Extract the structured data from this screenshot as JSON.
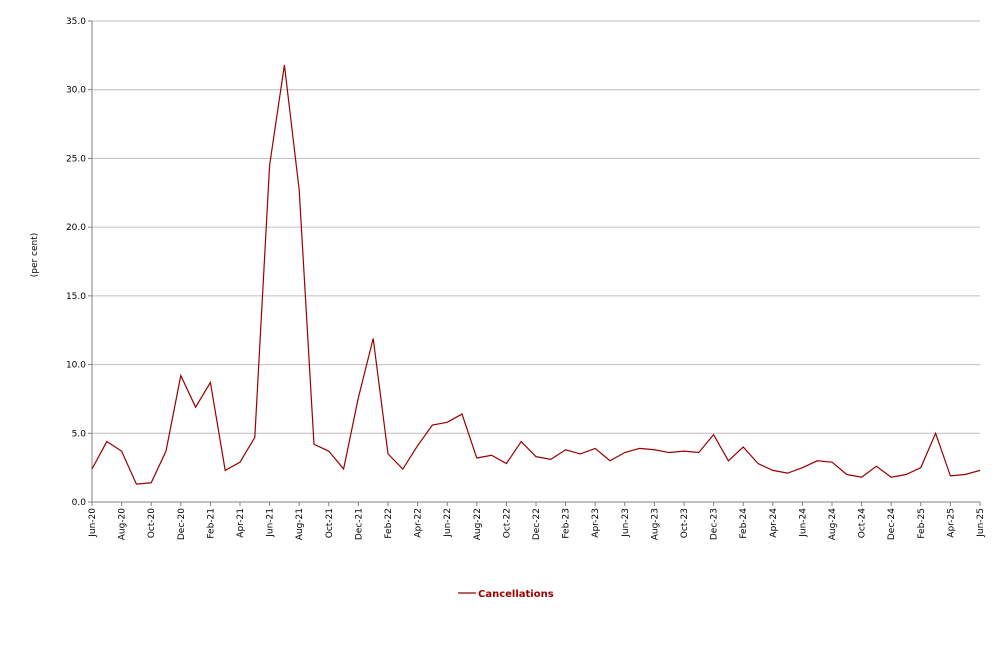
{
  "chart_data": {
    "type": "line",
    "title": "",
    "xlabel": "",
    "ylabel": "(per cent)",
    "ylim": [
      0,
      35
    ],
    "yticks": [
      "0.0",
      "5.0",
      "10.0",
      "15.0",
      "20.0",
      "25.0",
      "30.0",
      "35.0"
    ],
    "grid": true,
    "legend_position": "bottom-center",
    "colors": {
      "series": "#990000",
      "grid": "#c0c0c0",
      "axis": "#808080"
    },
    "x": [
      "Jun-20",
      "Jul-20",
      "Aug-20",
      "Sep-20",
      "Oct-20",
      "Nov-20",
      "Dec-20",
      "Jan-21",
      "Feb-21",
      "Mar-21",
      "Apr-21",
      "May-21",
      "Jun-21",
      "Jul-21",
      "Aug-21",
      "Sep-21",
      "Oct-21",
      "Nov-21",
      "Dec-21",
      "Jan-22",
      "Feb-22",
      "Mar-22",
      "Apr-22",
      "May-22",
      "Jun-22",
      "Jul-22",
      "Aug-22",
      "Sep-22",
      "Oct-22",
      "Nov-22",
      "Dec-22",
      "Jan-23",
      "Feb-23",
      "Mar-23",
      "Apr-23",
      "May-23",
      "Jun-23",
      "Jul-23",
      "Aug-23",
      "Sep-23",
      "Oct-23",
      "Nov-23",
      "Dec-23",
      "Jan-24",
      "Feb-24",
      "Mar-24",
      "Apr-24",
      "May-24",
      "Jun-24",
      "Jul-24",
      "Aug-24",
      "Sep-24",
      "Oct-24",
      "Nov-24",
      "Dec-24",
      "Jan-25",
      "Feb-25",
      "Mar-25",
      "Apr-25",
      "May-25",
      "Jun-25"
    ],
    "xtick_labels": [
      "Jun-20",
      "Aug-20",
      "Oct-20",
      "Dec-20",
      "Feb-21",
      "Apr-21",
      "Jun-21",
      "Aug-21",
      "Oct-21",
      "Dec-21",
      "Feb-22",
      "Apr-22",
      "Jun-22",
      "Aug-22",
      "Oct-22",
      "Dec-22",
      "Feb-23",
      "Apr-23",
      "Jun-23",
      "Aug-23",
      "Oct-23",
      "Dec-23",
      "Feb-24",
      "Apr-24",
      "Jun-24",
      "Aug-24",
      "Oct-24",
      "Dec-24",
      "Feb-25",
      "Apr-25",
      "Jun-25"
    ],
    "series": [
      {
        "name": "Cancellations",
        "values": [
          2.4,
          4.4,
          3.7,
          1.3,
          1.4,
          3.7,
          9.2,
          6.9,
          8.7,
          2.3,
          2.9,
          4.7,
          24.5,
          31.8,
          22.7,
          4.2,
          3.7,
          2.4,
          7.6,
          11.9,
          3.5,
          2.4,
          4.1,
          5.6,
          5.8,
          6.4,
          3.2,
          3.4,
          2.8,
          4.4,
          3.3,
          3.1,
          3.8,
          3.5,
          3.9,
          3.0,
          3.6,
          3.9,
          3.8,
          3.6,
          3.7,
          3.6,
          4.9,
          3.0,
          4.0,
          2.8,
          2.3,
          2.1,
          2.5,
          3.0,
          2.9,
          2.0,
          1.8,
          2.6,
          1.8,
          2.0,
          2.5,
          5.0,
          1.9,
          2.0,
          2.3
        ]
      }
    ]
  }
}
